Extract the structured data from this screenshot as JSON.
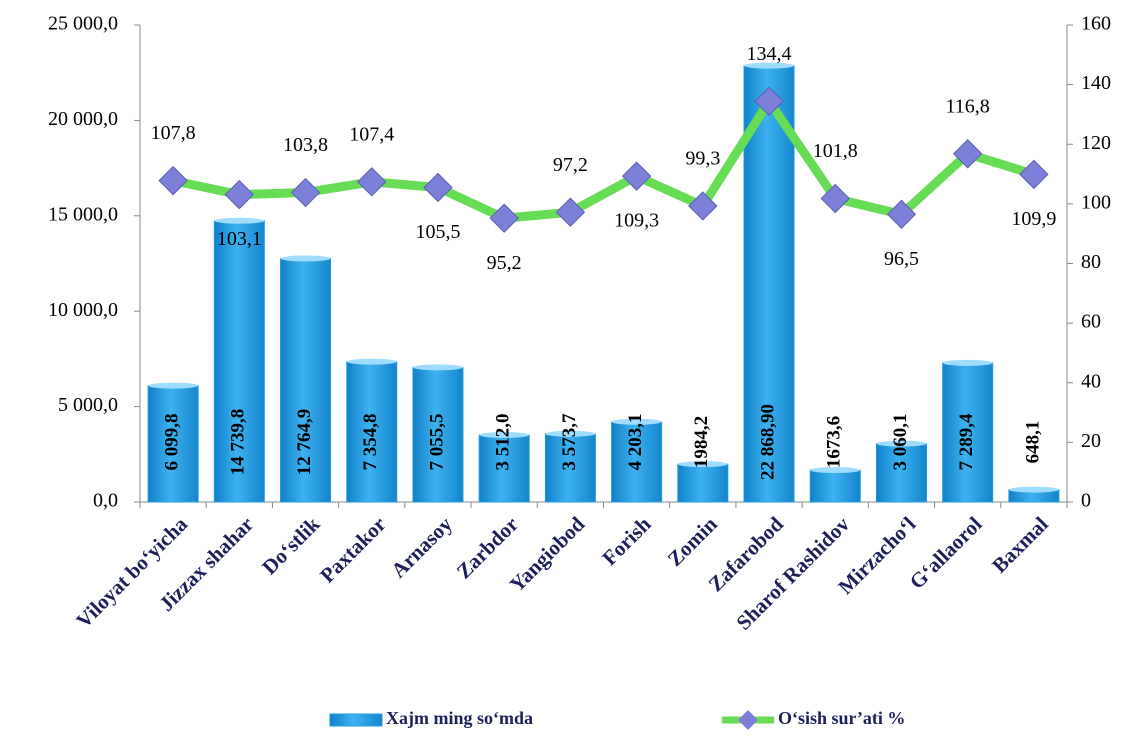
{
  "chart_data": {
    "type": "bar",
    "categories": [
      "Viloyat bo‘yicha",
      "Jizzax shahar",
      "Do‘stlik",
      "Paxtakor",
      "Arnasoy",
      "Zarbdor",
      "Yangiobod",
      "Forish",
      "Zomin",
      "Zafarobod",
      "Sharof Rashidov",
      "Mirzacho‘l",
      "G‘allaorol",
      "Baxmal"
    ],
    "series": [
      {
        "name": "Xajm ming so‘mda",
        "type": "bar",
        "color": "#1e9ae0",
        "values": [
          6099.8,
          14739.8,
          12764.9,
          7354.8,
          7055.5,
          3512.0,
          3573.7,
          4203.1,
          1984.2,
          22868.9,
          1673.6,
          3060.1,
          7289.4,
          648.1
        ],
        "value_labels": [
          "6 099,8",
          "14 739,8",
          "12 764,9",
          "7 354,8",
          "7 055,5",
          "3 512,0",
          "3 573,7",
          "4 203,1",
          "1984,2",
          "22 868,90",
          "1673,6",
          "3 060,1",
          "7 289,4",
          "648,1"
        ]
      },
      {
        "name": "O‘sish sur’ati %",
        "type": "line",
        "axis": "y2",
        "color": "#66dd55",
        "marker_color": "#7c80d8",
        "values": [
          107.8,
          103.1,
          103.8,
          107.4,
          105.5,
          95.2,
          97.2,
          109.3,
          99.3,
          134.4,
          101.8,
          96.5,
          116.8,
          109.9
        ],
        "value_labels": [
          "107,8",
          "103,1",
          "103,8",
          "107,4",
          "105,5",
          "95,2",
          "97,2",
          "109,3",
          "99,3",
          "134,4",
          "101,8",
          "96,5",
          "116,8",
          "109,9"
        ]
      }
    ],
    "ylim": [
      0,
      25000
    ],
    "yticks": [
      {
        "value": 0,
        "label": "0,0"
      },
      {
        "value": 5000,
        "label": "5 000,0"
      },
      {
        "value": 10000,
        "label": "10 000,0"
      },
      {
        "value": 15000,
        "label": "15 000,0"
      },
      {
        "value": 20000,
        "label": "20 000,0"
      },
      {
        "value": 25000,
        "label": "25 000,0"
      }
    ],
    "y2lim": [
      0,
      160
    ],
    "y2ticks": [
      0,
      20,
      40,
      60,
      80,
      100,
      120,
      140,
      160
    ],
    "grid": false
  }
}
